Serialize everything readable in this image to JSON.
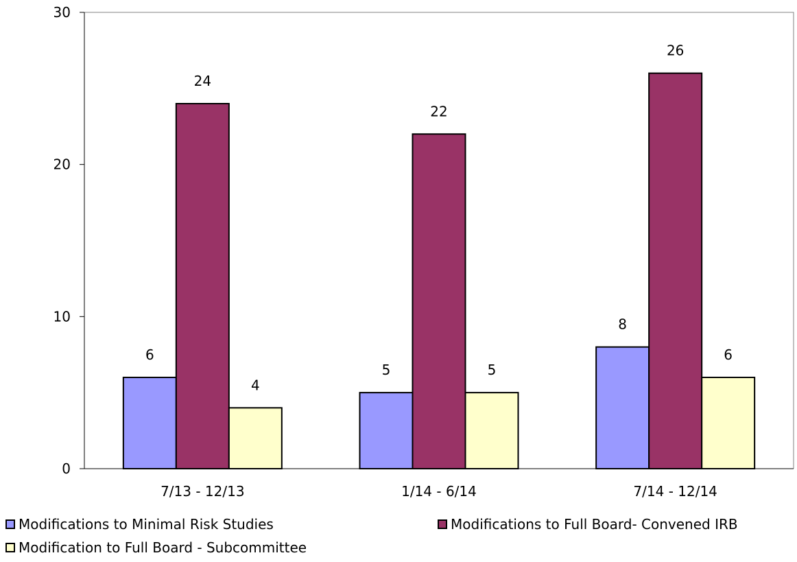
{
  "chart_data": {
    "type": "bar",
    "title": "",
    "xlabel": "",
    "ylabel": "",
    "categories": [
      "7/13 - 12/13",
      "1/14 - 6/14",
      "7/14 - 12/14"
    ],
    "series": [
      {
        "name": "Modifications to Minimal Risk Studies",
        "values": [
          6,
          5,
          8
        ],
        "color": "#9999ff"
      },
      {
        "name": "Modifications to Full Board- Convened IRB",
        "values": [
          24,
          22,
          26
        ],
        "color": "#993366"
      },
      {
        "name": "Modification to Full Board - Subcommittee",
        "values": [
          4,
          5,
          6
        ],
        "color": "#ffffcc"
      }
    ],
    "ylim": [
      0,
      30
    ],
    "yticks": [
      0,
      10,
      20,
      30
    ],
    "data_labels": true,
    "grid": false,
    "legend": "bottom"
  }
}
